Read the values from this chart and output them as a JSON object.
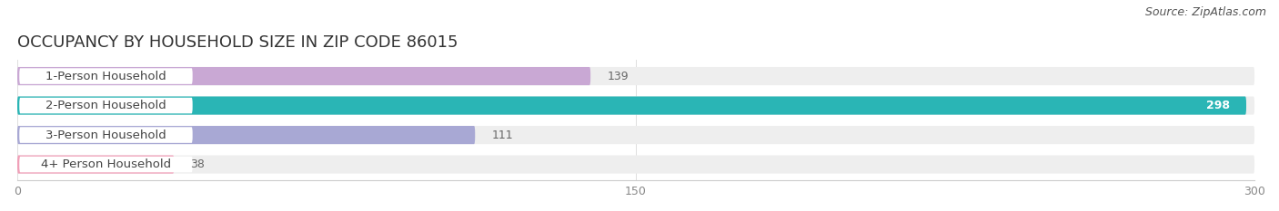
{
  "title": "OCCUPANCY BY HOUSEHOLD SIZE IN ZIP CODE 86015",
  "source": "Source: ZipAtlas.com",
  "categories": [
    "1-Person Household",
    "2-Person Household",
    "3-Person Household",
    "4+ Person Household"
  ],
  "values": [
    139,
    298,
    111,
    38
  ],
  "bar_colors": [
    "#c9a8d4",
    "#2ab5b5",
    "#a8a8d4",
    "#f0a0b8"
  ],
  "background_color": "#ffffff",
  "bar_background_color": "#eeeeee",
  "xlim": [
    0,
    300
  ],
  "xticks": [
    0,
    150,
    300
  ],
  "title_fontsize": 13,
  "label_fontsize": 9.5,
  "value_fontsize": 9,
  "source_fontsize": 9
}
